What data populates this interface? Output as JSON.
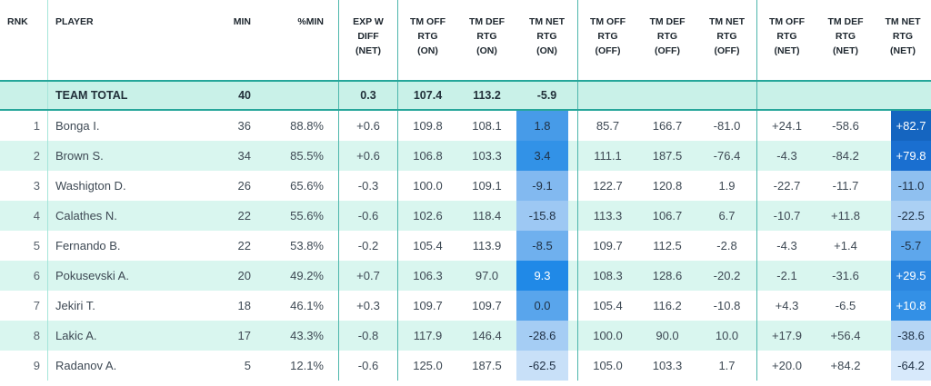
{
  "columns": [
    {
      "key": "rnk",
      "label": "RNK"
    },
    {
      "key": "player",
      "label": "PLAYER"
    },
    {
      "key": "min",
      "label": "MIN"
    },
    {
      "key": "pmin",
      "label": "%MIN"
    },
    {
      "key": "expw",
      "label": "EXP W\nDIFF\n(NET)"
    },
    {
      "key": "off-on",
      "label": "TM OFF\nRTG\n(ON)"
    },
    {
      "key": "def-on",
      "label": "TM DEF\nRTG\n(ON)"
    },
    {
      "key": "net-on",
      "label": "TM NET\nRTG\n(ON)"
    },
    {
      "key": "off-off",
      "label": "TM OFF\nRTG\n(OFF)"
    },
    {
      "key": "def-off",
      "label": "TM DEF\nRTG\n(OFF)"
    },
    {
      "key": "net-off",
      "label": "TM NET\nRTG\n(OFF)"
    },
    {
      "key": "off-net",
      "label": "TM OFF\nRTG\n(NET)"
    },
    {
      "key": "def-net",
      "label": "TM DEF\nRTG\n(NET)"
    },
    {
      "key": "net-net",
      "label": "TM NET\nRTG\n(NET)"
    }
  ],
  "team_total": {
    "values": [
      "",
      "TEAM TOTAL",
      "40",
      "",
      "0.3",
      "107.4",
      "113.2",
      "-5.9",
      "",
      "",
      "",
      "",
      "",
      ""
    ]
  },
  "rows": [
    {
      "values": [
        "1",
        "Bonga I.",
        "36",
        "88.8%",
        "+0.6",
        "109.8",
        "108.1",
        "1.8",
        "85.7",
        "166.7",
        "-81.0",
        "+24.1",
        "-58.6",
        "+82.7"
      ],
      "net_on": {
        "bg": "#479be8",
        "fg": "#1f3044"
      },
      "net_net": {
        "bg": "#1565c0",
        "fg": "#ffffff"
      }
    },
    {
      "values": [
        "2",
        "Brown S.",
        "34",
        "85.5%",
        "+0.6",
        "106.8",
        "103.3",
        "3.4",
        "111.1",
        "187.5",
        "-76.4",
        "-4.3",
        "-84.2",
        "+79.8"
      ],
      "net_on": {
        "bg": "#3292e7",
        "fg": "#1f3044"
      },
      "net_net": {
        "bg": "#1a6fd0",
        "fg": "#ffffff"
      }
    },
    {
      "values": [
        "3",
        "Washigton D.",
        "26",
        "65.6%",
        "-0.3",
        "100.0",
        "109.1",
        "-9.1",
        "122.7",
        "120.8",
        "1.9",
        "-22.7",
        "-11.7",
        "-11.0"
      ],
      "net_on": {
        "bg": "#82b9f0",
        "fg": "#1f3044"
      },
      "net_net": {
        "bg": "#8fc0f0",
        "fg": "#1f3044"
      }
    },
    {
      "values": [
        "4",
        "Calathes N.",
        "22",
        "55.6%",
        "-0.6",
        "102.6",
        "118.4",
        "-15.8",
        "113.3",
        "106.7",
        "6.7",
        "-10.7",
        "+11.8",
        "-22.5"
      ],
      "net_on": {
        "bg": "#9dc8f3",
        "fg": "#1f3044"
      },
      "net_net": {
        "bg": "#abd0f4",
        "fg": "#1f3044"
      }
    },
    {
      "values": [
        "5",
        "Fernando B.",
        "22",
        "53.8%",
        "-0.2",
        "105.4",
        "113.9",
        "-8.5",
        "109.7",
        "112.5",
        "-2.8",
        "-4.3",
        "+1.4",
        "-5.7"
      ],
      "net_on": {
        "bg": "#6fb0ee",
        "fg": "#1f3044"
      },
      "net_net": {
        "bg": "#5ea7ec",
        "fg": "#1f3044"
      }
    },
    {
      "values": [
        "6",
        "Pokusevski A.",
        "20",
        "49.2%",
        "+0.7",
        "106.3",
        "97.0",
        "9.3",
        "108.3",
        "128.6",
        "-20.2",
        "-2.1",
        "-31.6",
        "+29.5"
      ],
      "net_on": {
        "bg": "#2089e7",
        "fg": "#ffffff"
      },
      "net_net": {
        "bg": "#2c87e0",
        "fg": "#ffffff"
      }
    },
    {
      "values": [
        "7",
        "Jekiri T.",
        "18",
        "46.1%",
        "+0.3",
        "109.7",
        "109.7",
        "0.0",
        "105.4",
        "116.2",
        "-10.8",
        "+4.3",
        "-6.5",
        "+10.8"
      ],
      "net_on": {
        "bg": "#59a5ec",
        "fg": "#1f3044"
      },
      "net_net": {
        "bg": "#3390e6",
        "fg": "#ffffff"
      }
    },
    {
      "values": [
        "8",
        "Lakic A.",
        "17",
        "43.3%",
        "-0.8",
        "117.9",
        "146.4",
        "-28.6",
        "100.0",
        "90.0",
        "10.0",
        "+17.9",
        "+56.4",
        "-38.6"
      ],
      "net_on": {
        "bg": "#a5cdf4",
        "fg": "#1f3044"
      },
      "net_net": {
        "bg": "#b6d6f5",
        "fg": "#1f3044"
      }
    },
    {
      "values": [
        "9",
        "Radanov A.",
        "5",
        "12.1%",
        "-0.6",
        "125.0",
        "187.5",
        "-62.5",
        "105.0",
        "103.3",
        "1.7",
        "+20.0",
        "+84.2",
        "-64.2"
      ],
      "net_on": {
        "bg": "#c8e0f8",
        "fg": "#1f3044"
      },
      "net_net": {
        "bg": "#d7e9fb",
        "fg": "#1f3044"
      }
    }
  ],
  "colors": {
    "group_line": "#4db6ac",
    "light_line": "#a5e5d9",
    "total_border": "#26a69a",
    "total_bg": "#c9f1e8",
    "stripe_bg": "#d9f6ef",
    "marker_blue": "#2e62c9"
  }
}
